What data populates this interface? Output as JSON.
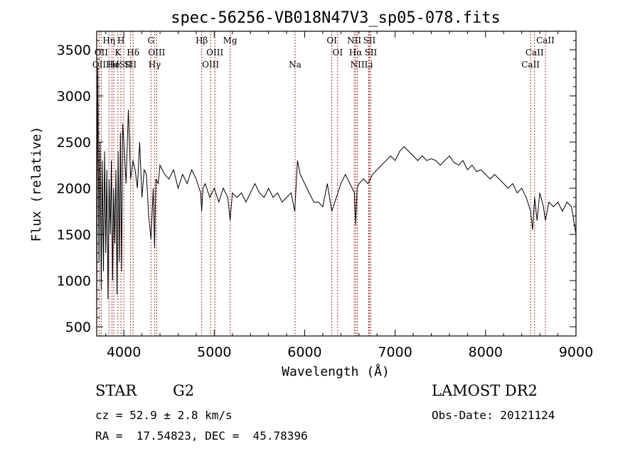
{
  "chart_data": {
    "type": "line",
    "title": "spec-56256-VB018N47V3_sp05-078.fits",
    "xlabel": "Wavelength (Å)",
    "ylabel": "Flux (relative)",
    "xlim": [
      3700,
      9000
    ],
    "ylim": [
      400,
      3700
    ],
    "xticks": [
      4000,
      5000,
      6000,
      7000,
      8000,
      9000
    ],
    "yticks": [
      500,
      1000,
      1500,
      2000,
      2500,
      3000,
      3500
    ],
    "grid": false,
    "line_color": "#000000",
    "marker_color": "#a83232",
    "series": [
      {
        "x": [
          3700,
          3712,
          3725,
          3737,
          3750,
          3762,
          3775,
          3787,
          3800,
          3812,
          3825,
          3837,
          3850,
          3862,
          3875,
          3887,
          3900,
          3912,
          3925,
          3937,
          3950,
          3962,
          3975,
          3987,
          4000,
          4025,
          4050,
          4075,
          4100,
          4125,
          4150,
          4175,
          4200,
          4225,
          4250,
          4275,
          4300,
          4325,
          4340,
          4355,
          4380,
          4400,
          4450,
          4500,
          4550,
          4600,
          4650,
          4700,
          4750,
          4800,
          4850,
          4861,
          4875,
          4900,
          4950,
          5000,
          5050,
          5100,
          5150,
          5175,
          5200,
          5250,
          5300,
          5350,
          5400,
          5450,
          5500,
          5550,
          5600,
          5650,
          5700,
          5750,
          5800,
          5850,
          5890,
          5920,
          5950,
          6000,
          6050,
          6100,
          6150,
          6200,
          6250,
          6300,
          6350,
          6400,
          6450,
          6500,
          6550,
          6563,
          6580,
          6600,
          6650,
          6700,
          6750,
          6800,
          6850,
          6900,
          6950,
          7000,
          7050,
          7100,
          7150,
          7200,
          7250,
          7300,
          7350,
          7400,
          7450,
          7500,
          7550,
          7600,
          7650,
          7700,
          7750,
          7800,
          7850,
          7900,
          7950,
          8000,
          8050,
          8100,
          8150,
          8200,
          8250,
          8300,
          8350,
          8400,
          8450,
          8498,
          8520,
          8542,
          8570,
          8600,
          8640,
          8662,
          8700,
          8750,
          8800,
          8850,
          8900,
          8950,
          9000
        ],
        "y": [
          700,
          3300,
          1200,
          2500,
          900,
          2300,
          1100,
          2400,
          1300,
          2200,
          800,
          2100,
          1500,
          2300,
          1000,
          2000,
          1400,
          2200,
          850,
          2400,
          1200,
          2600,
          1100,
          2700,
          2500,
          2050,
          2850,
          2100,
          2300,
          2200,
          2000,
          2500,
          1900,
          2200,
          2150,
          1700,
          1450,
          2000,
          1350,
          2100,
          2050,
          2250,
          2150,
          2100,
          2200,
          2000,
          2150,
          2050,
          2200,
          2100,
          1950,
          1750,
          2000,
          2050,
          1900,
          2000,
          1850,
          2000,
          1900,
          1650,
          1950,
          1900,
          1950,
          1850,
          1950,
          2050,
          1950,
          1900,
          2000,
          1900,
          1950,
          1850,
          1900,
          1950,
          1750,
          2300,
          2150,
          2050,
          1950,
          1850,
          1850,
          1800,
          2050,
          1750,
          1900,
          2050,
          2150,
          2050,
          1950,
          1600,
          2000,
          2050,
          2100,
          2050,
          2150,
          2200,
          2250,
          2300,
          2350,
          2300,
          2400,
          2450,
          2400,
          2350,
          2300,
          2350,
          2300,
          2320,
          2300,
          2250,
          2300,
          2350,
          2280,
          2250,
          2300,
          2200,
          2250,
          2180,
          2200,
          2150,
          2100,
          2150,
          2100,
          2050,
          2000,
          2050,
          1950,
          2000,
          1900,
          1750,
          1550,
          1900,
          1650,
          1950,
          1800,
          1650,
          1850,
          1800,
          1850,
          1750,
          1850,
          1800,
          1500
        ]
      }
    ],
    "lines": [
      {
        "x": 3727,
        "label": "OII",
        "row": 2
      },
      {
        "x": 3750,
        "label": "OII",
        "row": 1
      },
      {
        "x": 3835,
        "label": "Hη",
        "row": 0
      },
      {
        "x": 3869,
        "label": "He",
        "row": 2
      },
      {
        "x": 3889,
        "label": "He",
        "row": 2
      },
      {
        "x": 3934,
        "label": "K",
        "row": 1
      },
      {
        "x": 3968,
        "label": "H",
        "row": 0
      },
      {
        "x": 4000,
        "label": "ISII",
        "row": 2
      },
      {
        "x": 4072,
        "label": "SII",
        "row": 2
      },
      {
        "x": 4102,
        "label": "Hδ",
        "row": 1
      },
      {
        "x": 4300,
        "label": "G",
        "row": 0
      },
      {
        "x": 4340,
        "label": "Hγ",
        "row": 2
      },
      {
        "x": 4363,
        "label": "OIII",
        "row": 1
      },
      {
        "x": 4861,
        "label": "Hβ",
        "row": 0
      },
      {
        "x": 4959,
        "label": "OIII",
        "row": 2
      },
      {
        "x": 5007,
        "label": "OIII",
        "row": 1
      },
      {
        "x": 5175,
        "label": "Mg",
        "row": 0
      },
      {
        "x": 5894,
        "label": "Na",
        "row": 2
      },
      {
        "x": 6300,
        "label": "OI",
        "row": 0
      },
      {
        "x": 6364,
        "label": "OI",
        "row": 1
      },
      {
        "x": 6548,
        "label": "NII",
        "row": 0
      },
      {
        "x": 6563,
        "label": "Hα",
        "row": 1
      },
      {
        "x": 6583,
        "label": "NII",
        "row": 2
      },
      {
        "x": 6708,
        "label": "Li",
        "row": 2
      },
      {
        "x": 6716,
        "label": "SII",
        "row": 0
      },
      {
        "x": 6731,
        "label": "SII",
        "row": 1
      },
      {
        "x": 8498,
        "label": "CaII",
        "row": 2
      },
      {
        "x": 8542,
        "label": "CaII",
        "row": 1
      },
      {
        "x": 8662,
        "label": "CaII",
        "row": 0
      }
    ]
  },
  "info": {
    "class": "STAR",
    "subclass": "G2",
    "survey": "LAMOST DR2",
    "cz": "cz = 52.9 ± 2.8 km/s",
    "obs_date": "Obs-Date: 20121124",
    "coords": "RA =  17.54823, DEC =  45.78396"
  }
}
